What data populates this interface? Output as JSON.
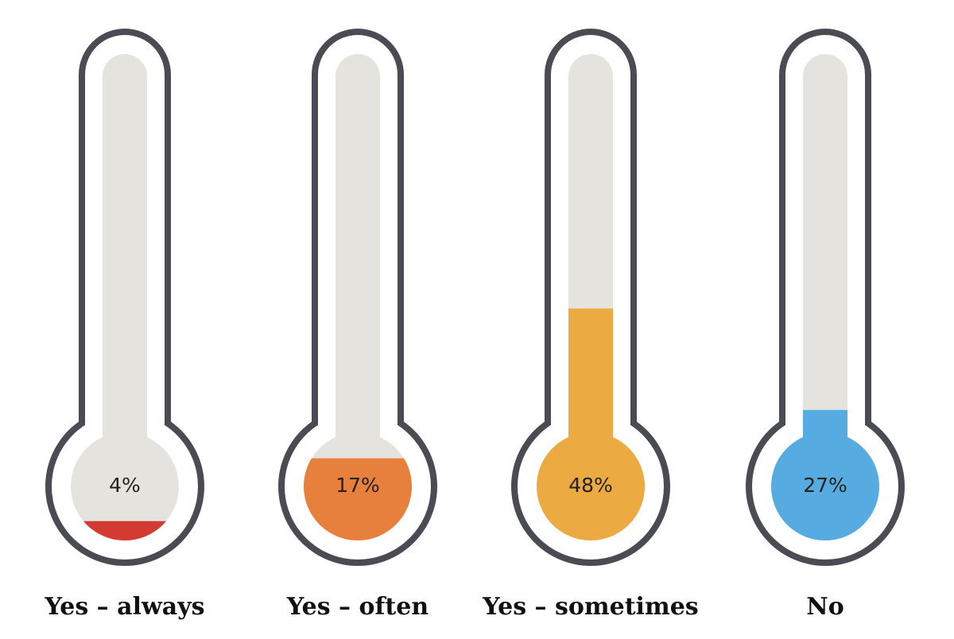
{
  "chart_data": {
    "type": "thermometer",
    "categories": [
      "Yes – always",
      "Yes – often",
      "Yes – sometimes",
      "No"
    ],
    "values": [
      4,
      17,
      48,
      27
    ],
    "value_labels": [
      "4%",
      "17%",
      "48%",
      "27%"
    ],
    "colors": [
      "#d23a32",
      "#e8803d",
      "#ecab42",
      "#56ace0"
    ],
    "ylim": [
      0,
      100
    ]
  }
}
